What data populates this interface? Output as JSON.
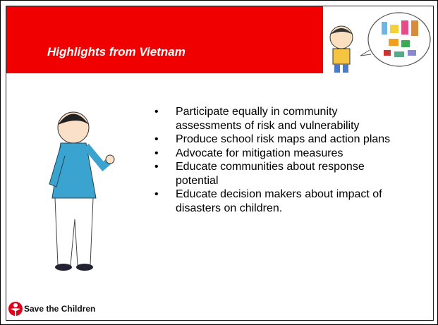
{
  "header": {
    "title": "Highlights from Vietnam"
  },
  "bullets": [
    " Participate equally in community assessments of risk and vulnerability",
    "Produce school risk maps and action plans",
    "Advocate for mitigation measures",
    "Educate communities about response potential",
    "Educate decision makers about impact of disasters on children."
  ],
  "footer": {
    "logo": "Save the Children"
  }
}
